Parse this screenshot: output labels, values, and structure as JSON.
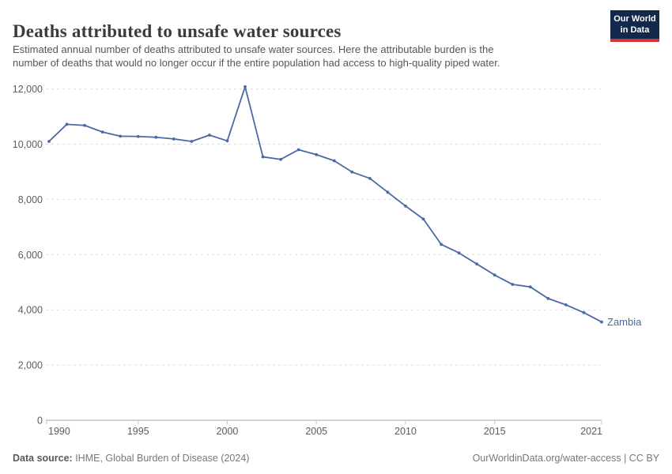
{
  "header": {
    "title": "Deaths attributed to unsafe water sources",
    "subtitle_line1": "Estimated annual number of deaths attributed to unsafe water sources. Here the attributable burden is the",
    "subtitle_line2": "number of deaths that would no longer occur if the entire population had access to high-quality piped water.",
    "logo_line1": "Our World",
    "logo_line2": "in Data"
  },
  "chart_data": {
    "type": "line",
    "title": "Deaths attributed to unsafe water sources",
    "x": [
      1990,
      1991,
      1992,
      1993,
      1994,
      1995,
      1996,
      1997,
      1998,
      1999,
      2000,
      2001,
      2002,
      2003,
      2004,
      2005,
      2006,
      2007,
      2008,
      2009,
      2010,
      2011,
      2012,
      2013,
      2014,
      2015,
      2016,
      2017,
      2018,
      2019,
      2020,
      2021
    ],
    "series": [
      {
        "name": "Zambia",
        "values": [
          10100,
          10720,
          10680,
          10440,
          10290,
          10280,
          10250,
          10190,
          10100,
          10330,
          10120,
          12080,
          9540,
          9450,
          9800,
          9620,
          9400,
          8990,
          8760,
          8260,
          7760,
          7290,
          6370,
          6060,
          5660,
          5260,
          4920,
          4830,
          4410,
          4180,
          3900,
          3560
        ]
      }
    ],
    "xlabel": "",
    "ylabel": "",
    "xlim": [
      1990,
      2021
    ],
    "ylim": [
      0,
      12000
    ],
    "grid": "horizontal-dashed",
    "legend_position": "end-of-line-label",
    "y_ticks": {
      "values": [
        0,
        2000,
        4000,
        6000,
        8000,
        10000,
        12000
      ],
      "labels": [
        "0",
        "2,000",
        "4,000",
        "6,000",
        "8,000",
        "10,000",
        "12,000"
      ]
    },
    "x_ticks": {
      "values": [
        1990,
        1995,
        2000,
        2005,
        2010,
        2015,
        2021
      ],
      "labels": [
        "1990",
        "1995",
        "2000",
        "2005",
        "2010",
        "2015",
        "2021"
      ]
    },
    "entity_label": "Zambia"
  },
  "footer": {
    "source_label": "Data source:",
    "source_value": " IHME, Global Burden of Disease (2024)",
    "link_text": "OurWorldinData.org/water-access | CC BY"
  },
  "colors": {
    "line": "#4a69a5",
    "logo_bg": "#12294b",
    "logo_accent": "#d1342f",
    "grid": "#dcdcdc",
    "axis": "#a5a5a5",
    "tick": "#c4c4c4",
    "tick_label": "#5c5c5c"
  }
}
